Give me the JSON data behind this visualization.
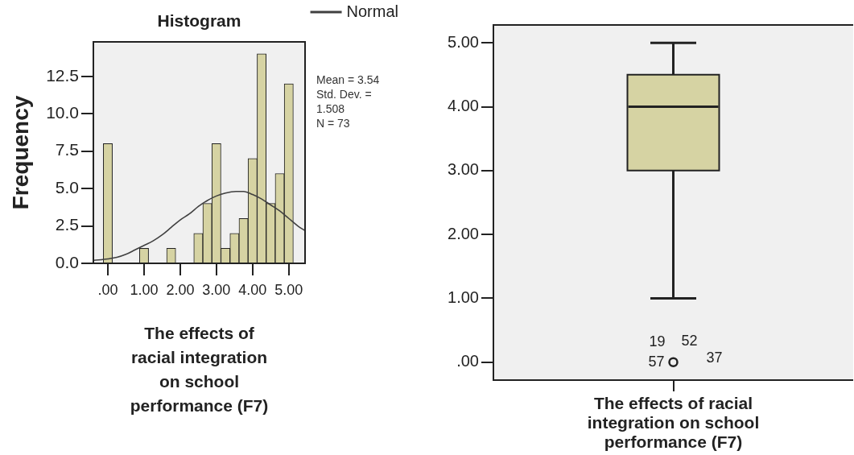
{
  "chart_data": [
    {
      "type": "histogram",
      "title": "Histogram",
      "xlabel": "The effects of racial integration on school performance (F7)",
      "ylabel": "Frequency",
      "bins": [
        -0.125,
        0.125,
        0.375,
        0.625,
        0.875,
        1.125,
        1.375,
        1.625,
        1.875,
        2.125,
        2.375,
        2.625,
        2.875,
        3.125,
        3.375,
        3.625,
        3.875,
        4.125,
        4.375,
        4.625,
        4.875,
        5.125
      ],
      "series": [
        {
          "color": "#d6d3a3",
          "values": [
            8,
            0,
            0,
            0,
            1,
            0,
            0,
            1,
            0,
            0,
            2,
            4,
            8,
            1,
            2,
            3,
            7,
            14,
            4,
            6,
            12
          ]
        },
        {
          "name": "Normal",
          "type": "line",
          "color": "#404040",
          "x": [
            -0.39,
            0,
            0.25,
            0.5,
            0.75,
            1,
            1.25,
            1.5,
            1.75,
            2,
            2.25,
            2.5,
            2.75,
            3,
            3.25,
            3.54,
            3.75,
            4,
            4.25,
            4.5,
            4.75,
            5,
            5.25,
            5.44
          ],
          "values": [
            0.2,
            0.3,
            0.4,
            0.6,
            0.9,
            1.2,
            1.5,
            1.9,
            2.4,
            2.9,
            3.3,
            3.8,
            4.2,
            4.5,
            4.7,
            4.8,
            4.8,
            4.6,
            4.3,
            3.9,
            3.5,
            3.0,
            2.5,
            2.2
          ]
        }
      ],
      "xlim": [
        -0.4,
        5.45
      ],
      "xticks": [
        {
          "value": 0,
          "label": ".00"
        },
        {
          "value": 1,
          "label": "1.00"
        },
        {
          "value": 2,
          "label": "2.00"
        },
        {
          "value": 3,
          "label": "3.00"
        },
        {
          "value": 4,
          "label": "4.00"
        },
        {
          "value": 5,
          "label": "5.00"
        }
      ],
      "ylim": [
        0,
        14.8
      ],
      "yticks": [
        {
          "value": 0,
          "label": "0.0"
        },
        2.5,
        {
          "value": 5,
          "label": "5.0"
        },
        7.5,
        {
          "value": 10,
          "label": "10.0"
        },
        12.5
      ],
      "legend": "top right",
      "marker": "none",
      "annotations": [
        "Mean = 3.54",
        "Std. Dev. = 1.508",
        "N = 73"
      ]
    },
    {
      "type": "box",
      "categories": [
        "The effects of racial integration on school performance (F7)"
      ],
      "color": "#d6d3a3",
      "boxes": [
        {
          "low": 1,
          "q1": 3,
          "median": 4,
          "q3": 4.5,
          "high": 5,
          "outliers": [
            0
          ]
        }
      ],
      "ylim": [
        -0.28,
        5.28
      ],
      "yticks": [
        {
          "value": 0,
          "label": ".00"
        },
        {
          "value": 1,
          "label": "1.00"
        },
        {
          "value": 2,
          "label": "2.00"
        },
        {
          "value": 3,
          "label": "3.00"
        },
        {
          "value": 4,
          "label": "4.00"
        },
        {
          "value": 5,
          "label": "5.00"
        }
      ],
      "annotations": [
        "19",
        "52",
        "57",
        "37"
      ]
    }
  ]
}
